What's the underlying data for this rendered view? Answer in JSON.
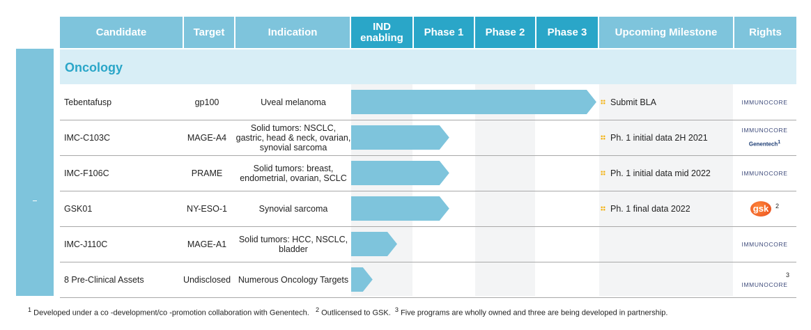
{
  "header": {
    "candidate": "Candidate",
    "target": "Target",
    "indication": "Indication",
    "ind_enabling": "IND enabling",
    "phase1": "Phase 1",
    "phase2": "Phase 2",
    "phase3": "Phase 3",
    "milestone": "Upcoming Milestone",
    "rights": "Rights"
  },
  "section": "Oncology",
  "colors": {
    "header_light": "#7ec4dc",
    "header_dark": "#2aa6c8",
    "bar": "#7ec4dc",
    "section_bg": "#d8eef6",
    "bullet": "#f3b51b"
  },
  "chart_data": {
    "type": "table",
    "stages": [
      "IND enabling",
      "Phase 1",
      "Phase 2",
      "Phase 3"
    ],
    "rows": [
      {
        "candidate": "Tebentafusp",
        "target": "gp100",
        "indication": "Uveal melanoma",
        "progress": 4,
        "milestone": "Submit BLA",
        "rights": "IMMUNOCORE",
        "partner": "",
        "partner_note": ""
      },
      {
        "candidate": "IMC-C103C",
        "target": "MAGE-A4",
        "indication": "Solid tumors: NSCLC, gastric, head & neck, ovarian, synovial sarcoma",
        "progress": 1.6,
        "milestone": "Ph. 1 initial data 2H 2021",
        "rights": "IMMUNOCORE",
        "partner": "Genentech",
        "partner_note": "1"
      },
      {
        "candidate": "IMC-F106C",
        "target": "PRAME",
        "indication": "Solid tumors: breast, endometrial, ovarian, SCLC",
        "progress": 1.6,
        "milestone": "Ph. 1 initial data mid 2022",
        "rights": "IMMUNOCORE",
        "partner": "",
        "partner_note": ""
      },
      {
        "candidate": "GSK01",
        "target": "NY-ESO-1",
        "indication": "Synovial sarcoma",
        "progress": 1.6,
        "milestone": "Ph. 1 final data 2022",
        "rights": "",
        "partner": "gsk",
        "partner_note": "2"
      },
      {
        "candidate": "IMC-J110C",
        "target": "MAGE-A1",
        "indication": "Solid tumors: HCC, NSCLC, bladder",
        "progress": 0.75,
        "milestone": "",
        "rights": "IMMUNOCORE",
        "partner": "",
        "partner_note": ""
      },
      {
        "candidate": "8 Pre-Clinical Assets",
        "target": "Undisclosed",
        "indication": "Numerous Oncology Targets",
        "progress": 0.35,
        "milestone": "",
        "rights": "IMMUNOCORE",
        "partner": "",
        "partner_note": "3"
      }
    ]
  },
  "footnotes": {
    "n1": "1",
    "t1": "Developed under a co -development/co -promotion collaboration with Genentech.",
    "n2": "2",
    "t2": "Outlicensed to GSK.",
    "n3": "3",
    "t3": "Five programs are wholly owned and three are being developed in partnership."
  }
}
